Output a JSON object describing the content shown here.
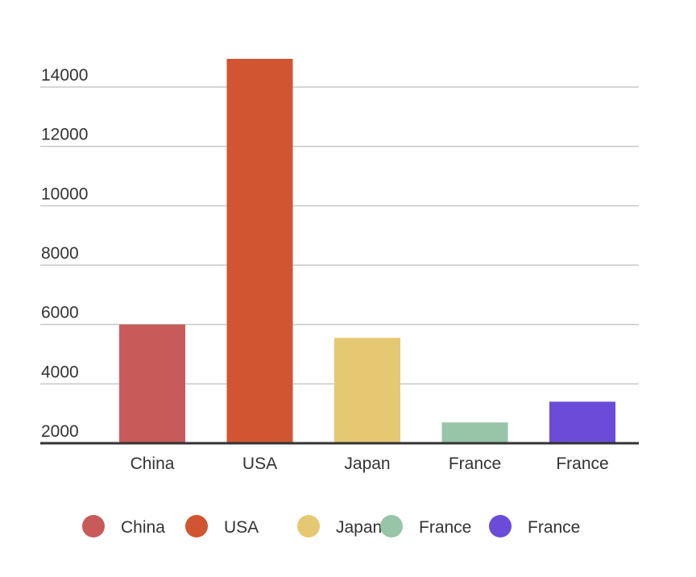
{
  "chart_data": {
    "type": "bar",
    "categories": [
      "China",
      "USA",
      "Japan",
      "France",
      "France"
    ],
    "values": [
      6000,
      14950,
      5550,
      2700,
      3400
    ],
    "colors": [
      "#c85a5a",
      "#d05530",
      "#e6c872",
      "#98c4a8",
      "#6a4cd8"
    ],
    "y_ticks": [
      "2000",
      "4000",
      "6000",
      "8000",
      "10000",
      "12000",
      "14000"
    ],
    "ylim": [
      2000,
      14000
    ],
    "title": "",
    "xlabel": "",
    "ylabel": "",
    "grid": true,
    "legend": {
      "position": "bottom",
      "entries": [
        "China",
        "USA",
        "Japan",
        "France",
        "France"
      ]
    }
  }
}
